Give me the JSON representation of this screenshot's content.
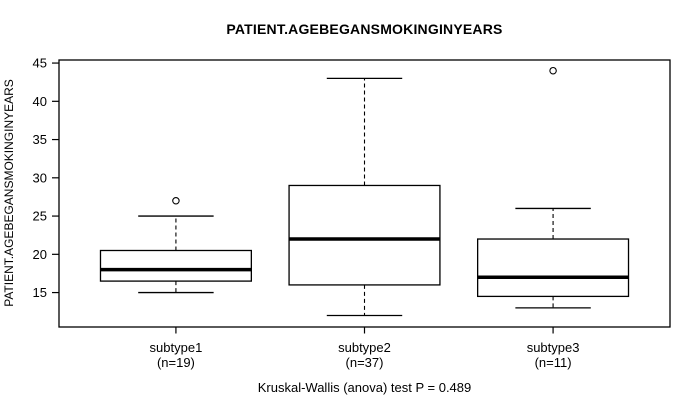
{
  "title": "PATIENT.AGEBEGANSMOKINGINYEARS",
  "caption": "Kruskal-Wallis (anova) test P = 0.489",
  "chart_data": {
    "type": "boxplot",
    "title": "PATIENT.AGEBEGANSMOKINGINYEARS",
    "xlabel": "",
    "ylabel": "PATIENT.AGEBEGANSMOKINGINYEARS",
    "annotation": "Kruskal-Wallis (anova) test P = 0.489",
    "ylim": [
      10.5,
      45.4
    ],
    "xlim": [
      0.38,
      3.62
    ],
    "yticks": [
      15,
      20,
      25,
      30,
      35,
      40,
      45
    ],
    "grid": false,
    "box_width": 0.8,
    "cap_width": 0.4,
    "groups": [
      {
        "label": "subtype1",
        "sublabel": "(n=19)",
        "n": 19,
        "position": 1,
        "whisker_low": 15,
        "q1": 16.5,
        "median": 18,
        "q3": 20.5,
        "whisker_high": 25,
        "outliers": [
          27
        ]
      },
      {
        "label": "subtype2",
        "sublabel": "(n=37)",
        "n": 37,
        "position": 2,
        "whisker_low": 12,
        "q1": 16,
        "median": 22,
        "q3": 29,
        "whisker_high": 43,
        "outliers": []
      },
      {
        "label": "subtype3",
        "sublabel": "(n=11)",
        "n": 11,
        "position": 3,
        "whisker_low": 13,
        "q1": 14.5,
        "median": 17,
        "q3": 22,
        "whisker_high": 26,
        "outliers": [
          44
        ]
      }
    ],
    "colors": {
      "line": "#000000",
      "box_fill": "#ffffff",
      "background": "#ffffff",
      "text": "#000000"
    }
  }
}
